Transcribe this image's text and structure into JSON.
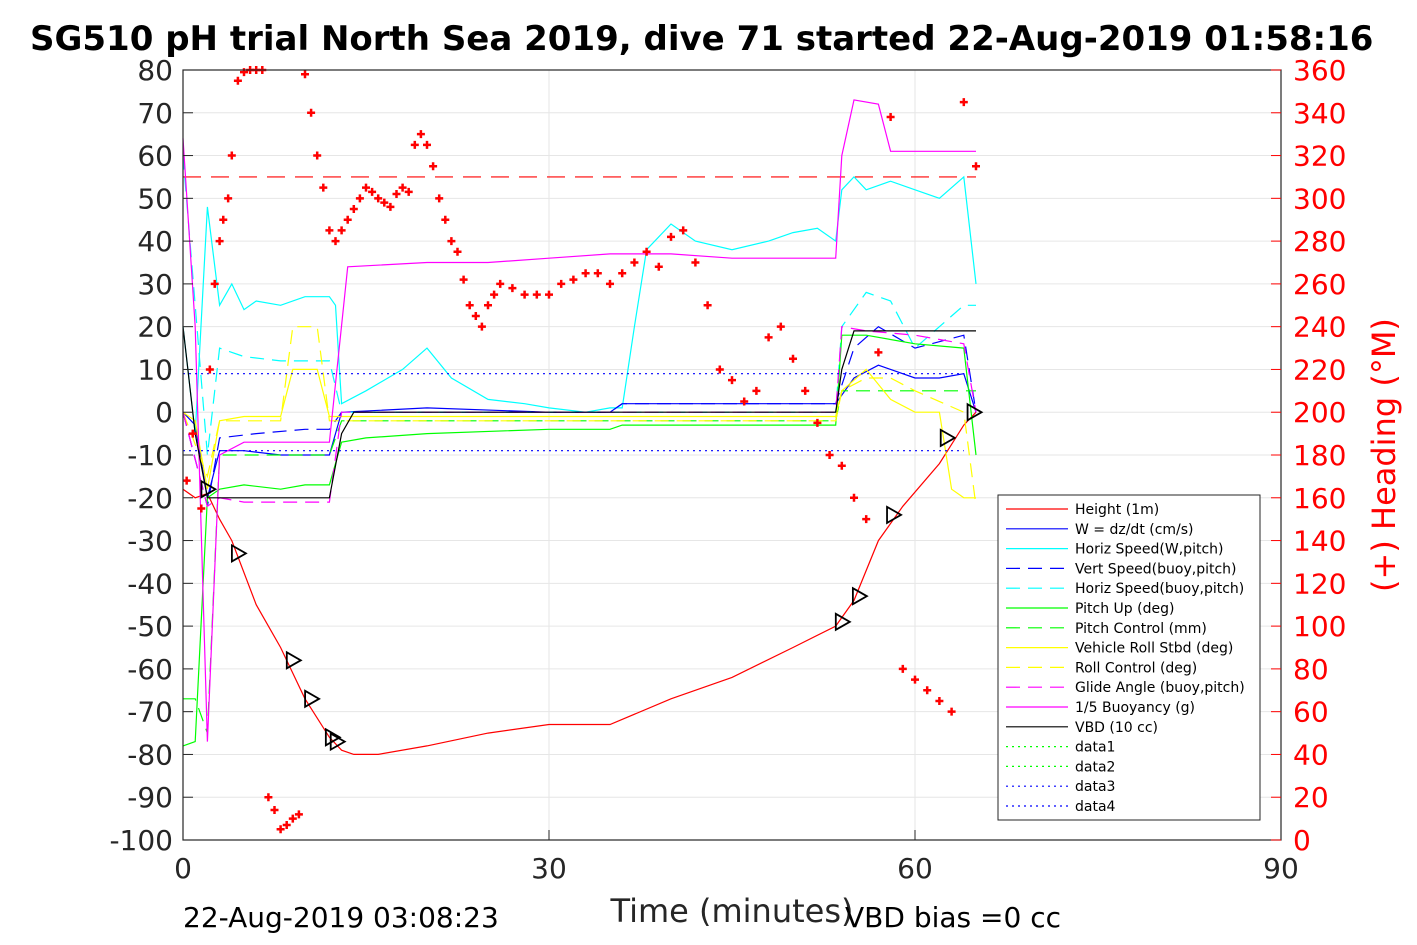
{
  "chart_data": {
    "type": "line",
    "title": "SG510 pH trial North Sea 2019, dive 71 started 22-Aug-2019 01:58:16",
    "xlabel": "Time (minutes)",
    "ylabel": "",
    "y2label": "(+) Heading (°M)",
    "xlim": [
      0,
      90
    ],
    "ylim": [
      -100,
      80
    ],
    "y2lim": [
      0,
      360
    ],
    "xticks": [
      "0",
      "30",
      "60",
      "90"
    ],
    "yticks": [
      "80",
      "70",
      "60",
      "50",
      "40",
      "30",
      "20",
      "10",
      "0",
      "-10",
      "-20",
      "-30",
      "-40",
      "-50",
      "-60",
      "-70",
      "-80",
      "-90",
      "-100"
    ],
    "y2ticks": [
      "360",
      "340",
      "320",
      "300",
      "280",
      "260",
      "240",
      "220",
      "200",
      "180",
      "160",
      "140",
      "120",
      "100",
      "80",
      "60",
      "40",
      "20",
      "0"
    ],
    "grid": true,
    "legend_position": "bottom-right",
    "footer_left": "22-Aug-2019 03:08:23",
    "footer_right": "VBD bias =0 cc",
    "colors": {
      "height": "#ff0000",
      "w": "#0000ff",
      "horiz_w": "#00ffff",
      "vert_buoy": "#0000ff",
      "horiz_buoy": "#00ffff",
      "pitch_up": "#00ff00",
      "pitch_control": "#00ff00",
      "roll": "#ffff00",
      "roll_control": "#ffff00",
      "glide": "#ff00ff",
      "buoyancy": "#ff00ff",
      "vbd": "#000000",
      "heading": "#ff0000"
    },
    "series": [
      {
        "key": "height",
        "name": "Height (1m)",
        "style": "solid",
        "color": "#ff0000",
        "x": [
          0,
          1,
          2,
          3,
          4,
          6,
          8,
          10,
          12,
          13,
          14,
          16,
          20,
          25,
          30,
          35,
          40,
          45,
          50,
          53.5,
          55,
          57,
          59,
          62,
          64,
          65
        ],
        "y": [
          -18,
          -20,
          -19,
          -25,
          -30,
          -45,
          -55,
          -67,
          -76,
          -79,
          -80,
          -80,
          -78,
          -75,
          -73,
          -73,
          -67,
          -62,
          -55,
          -50,
          -44,
          -30,
          -22,
          -12,
          -3,
          0
        ]
      },
      {
        "key": "w",
        "name": "W = dz/dt (cm/s)",
        "style": "solid",
        "color": "#0000ff",
        "x": [
          0,
          1,
          2,
          3,
          5,
          8,
          10,
          12,
          13,
          20,
          30,
          35,
          36,
          45,
          50,
          53.5,
          55,
          57,
          60,
          62,
          64,
          65
        ],
        "y": [
          0,
          -3,
          -20,
          -9,
          -9,
          -10,
          -10,
          -10,
          0,
          1,
          0,
          0,
          2,
          2,
          2,
          2,
          8,
          11,
          8,
          8,
          9,
          0
        ]
      },
      {
        "key": "horiz_w",
        "name": "Horiz Speed(W,pitch)",
        "style": "solid",
        "color": "#00ffff",
        "x": [
          0,
          1,
          2,
          3,
          4,
          5,
          6,
          8,
          10,
          12,
          12.5,
          13,
          15,
          18,
          20,
          22,
          25,
          28,
          30,
          33,
          35,
          36,
          37,
          38,
          40,
          42,
          45,
          48,
          50,
          52,
          53.5,
          54,
          55,
          56,
          58,
          60,
          62,
          64,
          65
        ],
        "y": [
          20,
          -5,
          48,
          25,
          30,
          24,
          26,
          25,
          27,
          27,
          25,
          2,
          5,
          10,
          15,
          8,
          3,
          2,
          1,
          0,
          1,
          1,
          20,
          38,
          44,
          40,
          38,
          40,
          42,
          43,
          40,
          52,
          55,
          52,
          54,
          52,
          50,
          55,
          30
        ]
      },
      {
        "key": "vert_buoy",
        "name": "Vert Speed(buoy,pitch)",
        "style": "dashed",
        "color": "#0000ff",
        "x": [
          0,
          2,
          3,
          6,
          10,
          12,
          13,
          30,
          35,
          36,
          53.5,
          55,
          57,
          60,
          64,
          65
        ],
        "y": [
          0,
          -22,
          -6,
          -5,
          -4,
          -4,
          0,
          0,
          0,
          2,
          2,
          15,
          20,
          15,
          18,
          0
        ]
      },
      {
        "key": "horiz_buoy",
        "name": "Horiz Speed(buoy,pitch)",
        "style": "dashed",
        "color": "#00ffff",
        "x": [
          0,
          1,
          2,
          3,
          5,
          8,
          10,
          12,
          13,
          53.5,
          54,
          56,
          58,
          60,
          62,
          64,
          65
        ],
        "y": [
          60,
          25,
          -10,
          15,
          13,
          12,
          12,
          12,
          0,
          0,
          20,
          28,
          26,
          15,
          20,
          25,
          25
        ]
      },
      {
        "key": "pitch_up",
        "name": "Pitch Up (deg)",
        "style": "solid",
        "color": "#00ff00",
        "x": [
          0,
          1,
          2,
          3,
          5,
          8,
          10,
          12,
          13,
          15,
          20,
          30,
          35,
          36,
          45,
          50,
          53.5,
          54,
          56,
          60,
          64,
          65
        ],
        "y": [
          -78,
          -77,
          -20,
          -18,
          -17,
          -18,
          -17,
          -17,
          -7,
          -6,
          -5,
          -4,
          -4,
          -3,
          -3,
          -3,
          -3,
          18,
          18,
          16,
          15,
          -10
        ]
      },
      {
        "key": "pitch_control",
        "name": "Pitch Control (mm)",
        "style": "dashed",
        "color": "#00ff00",
        "x": [
          0,
          1,
          2,
          3,
          12,
          13,
          53.5,
          54,
          56,
          60,
          64,
          65
        ],
        "y": [
          -67,
          -67,
          -75,
          -10,
          -10,
          -2,
          -2,
          5,
          5,
          5,
          5,
          5
        ]
      },
      {
        "key": "roll",
        "name": "Vehicle Roll Stbd (deg)",
        "style": "solid",
        "color": "#ffff00",
        "x": [
          0,
          1,
          2,
          3,
          5,
          8,
          9,
          10,
          11,
          12,
          13,
          20,
          30,
          40,
          53.5,
          54,
          56,
          58,
          60,
          62,
          63,
          64,
          65
        ],
        "y": [
          0,
          -2,
          -18,
          -2,
          -1,
          -1,
          10,
          10,
          10,
          -1,
          -1,
          -1,
          -1,
          -1,
          -1,
          5,
          10,
          3,
          0,
          0,
          -18,
          -20,
          -20
        ]
      },
      {
        "key": "roll_control",
        "name": "Roll Control (deg)",
        "style": "dashed",
        "color": "#ffff00",
        "x": [
          0,
          2,
          3,
          8,
          9,
          10,
          11,
          12,
          13,
          53.5,
          54,
          56,
          58,
          60,
          64,
          65
        ],
        "y": [
          0,
          -15,
          -2,
          -2,
          20,
          20,
          20,
          -2,
          -2,
          -2,
          5,
          8,
          8,
          5,
          0,
          -22
        ]
      },
      {
        "key": "glide",
        "name": "Glide Angle (buoy,pitch)",
        "style": "dashed",
        "color": "#ff00ff",
        "x": [
          0,
          2,
          3,
          5,
          8,
          10,
          12,
          13,
          30,
          53.5,
          54,
          56,
          60,
          64,
          65
        ],
        "y": [
          0,
          -22,
          -20,
          -21,
          -21,
          -21,
          -21,
          0,
          0,
          0,
          20,
          19,
          18,
          16,
          0
        ]
      },
      {
        "key": "buoyancy",
        "name": "1/5 Buoyancy (g)",
        "style": "solid",
        "color": "#ff00ff",
        "x": [
          0,
          1,
          2,
          3,
          5,
          8,
          10,
          12,
          13.5,
          20,
          25,
          30,
          35,
          40,
          45,
          50,
          53.5,
          54,
          55,
          57,
          58,
          60,
          64,
          65
        ],
        "y": [
          64,
          20,
          -77,
          -10,
          -7,
          -7,
          -7,
          -7,
          34,
          35,
          35,
          36,
          37,
          37,
          36,
          36,
          36,
          60,
          73,
          72,
          61,
          61,
          61,
          61
        ]
      },
      {
        "key": "vbd",
        "name": "VBD (10 cc)",
        "style": "solid",
        "color": "#000000",
        "x": [
          0,
          1,
          2,
          3,
          12,
          13,
          14,
          53.5,
          54,
          55,
          65
        ],
        "y": [
          20,
          -5,
          -20,
          -20,
          -20,
          -5,
          0,
          0,
          10,
          19,
          19
        ]
      },
      {
        "key": "data1",
        "name": "data1",
        "style": "dotted",
        "color": "#00ff00",
        "x": [],
        "y": []
      },
      {
        "key": "data2",
        "name": "data2",
        "style": "dotted",
        "color": "#00ff00",
        "x": [],
        "y": []
      },
      {
        "key": "data3",
        "name": "data3",
        "style": "dotted",
        "color": "#0000ff",
        "x": [
          0,
          64
        ],
        "y": [
          9,
          9
        ]
      },
      {
        "key": "data4",
        "name": "data4",
        "style": "dotted",
        "color": "#0000ff",
        "x": [
          0,
          64
        ],
        "y": [
          -9,
          -9
        ]
      }
    ],
    "reference_line": {
      "y2": 310,
      "style": "dashed",
      "color": "#ff0000",
      "x": [
        0,
        65
      ]
    },
    "heading_points": {
      "color": "#ff0000",
      "x": [
        0.3,
        0.8,
        1.5,
        2.2,
        2.6,
        3.0,
        3.3,
        3.7,
        4.0,
        4.5,
        5.0,
        5.5,
        6.0,
        6.5,
        7.0,
        7.5,
        8.0,
        8.5,
        9.0,
        9.5,
        10.0,
        10.5,
        11.0,
        11.5,
        12.0,
        12.5,
        13.0,
        13.5,
        14.0,
        14.5,
        15.0,
        15.5,
        16.0,
        16.5,
        17.0,
        17.5,
        18.0,
        18.5,
        19.0,
        19.5,
        20.0,
        20.5,
        21.0,
        21.5,
        22.0,
        22.5,
        23.0,
        23.5,
        24.0,
        24.5,
        25.0,
        25.5,
        26.0,
        27.0,
        28.0,
        29.0,
        30.0,
        31.0,
        32.0,
        33.0,
        34.0,
        35.0,
        36.0,
        37.0,
        38.0,
        39.0,
        40.0,
        41.0,
        42.0,
        43.0,
        44.0,
        45.0,
        46.0,
        47.0,
        48.0,
        49.0,
        50.0,
        51.0,
        52.0,
        53.0,
        54.0,
        55.0,
        56.0,
        57.0,
        58.0,
        59.0,
        60.0,
        61.0,
        62.0,
        63.0,
        64.0,
        65.0
      ],
      "y": [
        168,
        190,
        155,
        220,
        260,
        280,
        290,
        300,
        320,
        355,
        359,
        360,
        360,
        360,
        20,
        14,
        5,
        7,
        10,
        12,
        358,
        340,
        320,
        305,
        285,
        280,
        285,
        290,
        295,
        300,
        305,
        303,
        300,
        298,
        296,
        302,
        305,
        303,
        325,
        330,
        325,
        315,
        300,
        290,
        280,
        275,
        262,
        250,
        245,
        240,
        250,
        255,
        260,
        258,
        255,
        255,
        255,
        260,
        262,
        265,
        265,
        260,
        265,
        270,
        275,
        268,
        282,
        285,
        270,
        250,
        220,
        215,
        205,
        210,
        235,
        240,
        225,
        210,
        195,
        180,
        175,
        160,
        150,
        228,
        338,
        80,
        75,
        70,
        65,
        60,
        345,
        315
      ]
    },
    "markers": {
      "x": [
        2.0,
        4.5,
        9.0,
        10.5,
        12.2,
        12.6,
        54.0,
        55.4,
        58.2,
        62.6,
        64.8
      ],
      "y": [
        -18,
        -33,
        -58,
        -67,
        -76,
        -77,
        -49,
        -43,
        -24,
        -6,
        0
      ]
    }
  }
}
